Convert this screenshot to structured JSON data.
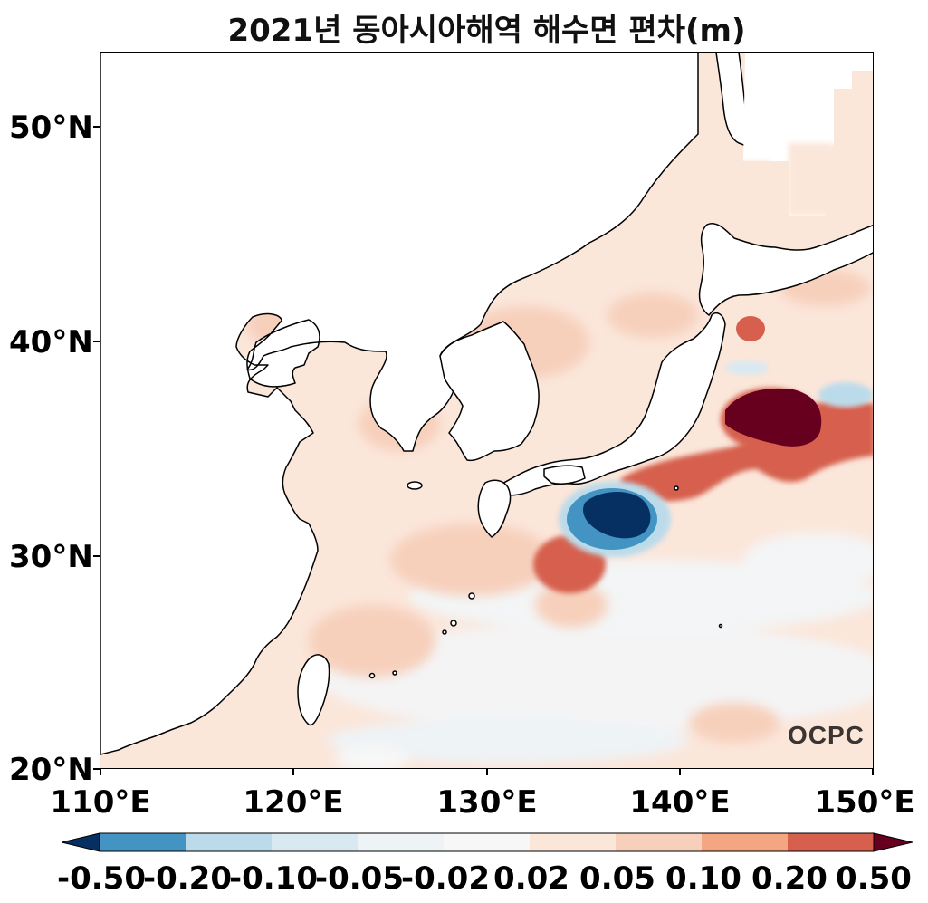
{
  "title": "2021년 동아시아해역 해수면 편차(m)",
  "logo_text": "OCPC",
  "axes": {
    "lat_labels": [
      "50°N",
      "40°N",
      "30°N",
      "20°N"
    ],
    "lon_labels": [
      "110°E",
      "120°E",
      "130°E",
      "140°E",
      "150°E"
    ],
    "lon_range": [
      110,
      150
    ],
    "lat_range": [
      20,
      53.4
    ]
  },
  "colorbar": {
    "labels": [
      "-0.50",
      "-0.20",
      "-0.10",
      "-0.05",
      "-0.02",
      "0.02",
      "0.05",
      "0.10",
      "0.20",
      "0.50"
    ],
    "colors": [
      "#053061",
      "#4393c3",
      "#bcdbea",
      "#d9e9f1",
      "#eef3f6",
      "#f7f7f7",
      "#fbe6da",
      "#f7d0bc",
      "#f4a582",
      "#d6604d",
      "#67001f"
    ]
  },
  "chart_data": {
    "type": "heatmap",
    "title": "2021년 동아시아해역 해수면 편차(m)",
    "variable_unit": "m",
    "xlim": [
      110,
      150
    ],
    "ylim": [
      20,
      53.4
    ],
    "xticks": [
      "110°E",
      "120°E",
      "130°E",
      "140°E",
      "150°E"
    ],
    "yticks": [
      "20°N",
      "30°N",
      "40°N",
      "50°N"
    ],
    "levels": [
      -0.5,
      -0.2,
      -0.1,
      -0.05,
      -0.02,
      0.02,
      0.05,
      0.1,
      0.2,
      0.5
    ],
    "features": [
      {
        "type": "negative anomaly (cold eddy)",
        "lon": 136.5,
        "lat": 31.8,
        "value": -0.5
      },
      {
        "type": "positive anomaly (Kuroshio Extension)",
        "lon": 144.5,
        "lat": 36.4,
        "value": 0.5
      },
      {
        "type": "positive anomaly",
        "lon": 134.3,
        "lat": 29.8,
        "value": 0.2
      },
      {
        "type": "positive anomaly",
        "lon": 142.6,
        "lat": 40.6,
        "value": 0.2
      },
      {
        "type": "negative anomaly",
        "lon": 148,
        "lat": 37.6,
        "value": -0.1
      },
      {
        "type": "positive anomaly",
        "lon": 139.5,
        "lat": 33.8,
        "value": 0.2
      }
    ]
  }
}
